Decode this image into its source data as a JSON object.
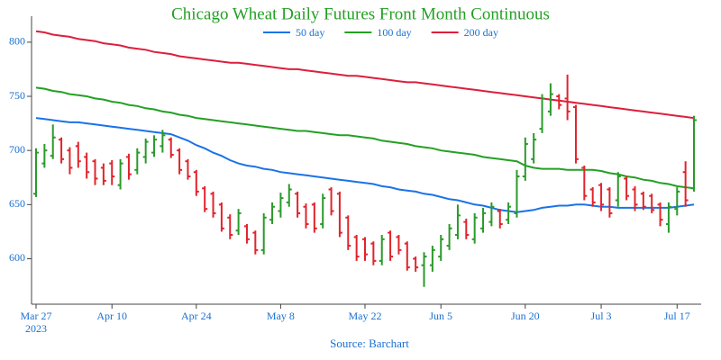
{
  "chart_data": {
    "type": "ohlc",
    "title": "Chicago Wheat Daily Futures Front Month Continuous",
    "source": "Source: Barchart",
    "x": [
      "2023-03-27",
      "2023-03-28",
      "2023-03-29",
      "2023-03-30",
      "2023-03-31",
      "2023-04-03",
      "2023-04-04",
      "2023-04-05",
      "2023-04-06",
      "2023-04-10",
      "2023-04-11",
      "2023-04-12",
      "2023-04-13",
      "2023-04-14",
      "2023-04-17",
      "2023-04-18",
      "2023-04-19",
      "2023-04-20",
      "2023-04-21",
      "2023-04-24",
      "2023-04-25",
      "2023-04-26",
      "2023-04-27",
      "2023-04-28",
      "2023-05-01",
      "2023-05-02",
      "2023-05-03",
      "2023-05-04",
      "2023-05-05",
      "2023-05-08",
      "2023-05-09",
      "2023-05-10",
      "2023-05-11",
      "2023-05-12",
      "2023-05-15",
      "2023-05-16",
      "2023-05-17",
      "2023-05-18",
      "2023-05-19",
      "2023-05-22",
      "2023-05-23",
      "2023-05-24",
      "2023-05-25",
      "2023-05-26",
      "2023-05-30",
      "2023-05-31",
      "2023-06-01",
      "2023-06-02",
      "2023-06-05",
      "2023-06-06",
      "2023-06-07",
      "2023-06-08",
      "2023-06-09",
      "2023-06-12",
      "2023-06-13",
      "2023-06-14",
      "2023-06-15",
      "2023-06-16",
      "2023-06-20",
      "2023-06-21",
      "2023-06-22",
      "2023-06-23",
      "2023-06-26",
      "2023-06-27",
      "2023-06-28",
      "2023-06-29",
      "2023-06-30",
      "2023-07-03",
      "2023-07-05",
      "2023-07-06",
      "2023-07-07",
      "2023-07-10",
      "2023-07-11",
      "2023-07-12",
      "2023-07-13",
      "2023-07-14",
      "2023-07-17",
      "2023-07-18",
      "2023-07-19"
    ],
    "ohlc": {
      "increasing_color": "#2a9a2a",
      "decreasing_color": "#e0242c",
      "open": [
        660,
        688,
        695,
        710,
        700,
        704,
        694,
        690,
        684,
        688,
        668,
        694,
        682,
        694,
        698,
        704,
        710,
        700,
        690,
        680,
        665,
        660,
        650,
        638,
        626,
        630,
        624,
        608,
        636,
        644,
        652,
        660,
        648,
        650,
        632,
        664,
        660,
        638,
        620,
        618,
        614,
        598,
        624,
        620,
        614,
        600,
        594,
        594,
        602,
        612,
        622,
        634,
        618,
        628,
        634,
        644,
        636,
        642,
        676,
        692,
        720,
        736,
        750,
        748,
        740,
        684,
        664,
        668,
        664,
        654,
        674,
        664,
        660,
        658,
        650,
        632,
        646,
        680,
        665
      ],
      "high": [
        702,
        706,
        724,
        712,
        703,
        708,
        698,
        692,
        688,
        691,
        692,
        697,
        702,
        711,
        714,
        719,
        712,
        702,
        692,
        682,
        667,
        662,
        652,
        641,
        646,
        632,
        626,
        642,
        652,
        661,
        669,
        662,
        651,
        652,
        660,
        666,
        662,
        640,
        622,
        620,
        616,
        622,
        626,
        622,
        616,
        602,
        606,
        612,
        622,
        632,
        650,
        637,
        642,
        647,
        652,
        646,
        652,
        682,
        712,
        716,
        752,
        762,
        752,
        770,
        742,
        686,
        666,
        670,
        666,
        680,
        676,
        667,
        662,
        660,
        652,
        652,
        666,
        690,
        732
      ],
      "low": [
        657,
        684,
        692,
        688,
        678,
        684,
        674,
        668,
        668,
        668,
        664,
        673,
        678,
        688,
        694,
        698,
        693,
        678,
        673,
        658,
        643,
        638,
        625,
        618,
        622,
        614,
        604,
        604,
        632,
        638,
        648,
        638,
        628,
        624,
        628,
        640,
        620,
        608,
        598,
        598,
        594,
        594,
        598,
        604,
        589,
        588,
        574,
        588,
        598,
        608,
        618,
        618,
        614,
        624,
        630,
        628,
        632,
        638,
        672,
        688,
        716,
        732,
        738,
        728,
        688,
        654,
        648,
        644,
        638,
        648,
        654,
        644,
        645,
        642,
        630,
        624,
        640,
        648,
        662
      ],
      "close": [
        698,
        700,
        712,
        692,
        684,
        690,
        680,
        674,
        672,
        676,
        688,
        678,
        698,
        708,
        710,
        714,
        696,
        682,
        676,
        662,
        646,
        642,
        628,
        622,
        642,
        618,
        608,
        638,
        648,
        656,
        664,
        642,
        632,
        628,
        656,
        644,
        624,
        612,
        602,
        604,
        598,
        618,
        602,
        608,
        592,
        592,
        602,
        608,
        618,
        628,
        640,
        622,
        638,
        642,
        648,
        632,
        648,
        676,
        706,
        710,
        748,
        752,
        742,
        736,
        692,
        658,
        652,
        650,
        642,
        676,
        658,
        650,
        648,
        645,
        636,
        648,
        662,
        654,
        728
      ]
    },
    "series": [
      {
        "name": "50 day",
        "color": "#1a73e8",
        "values": [
          730,
          729,
          728,
          727,
          726,
          726,
          725,
          724,
          723,
          722,
          721,
          720,
          719,
          718,
          717,
          716,
          715,
          712,
          709,
          705,
          702,
          698,
          695,
          691,
          688,
          686,
          685,
          683,
          682,
          680,
          679,
          678,
          677,
          676,
          675,
          674,
          673,
          672,
          671,
          670,
          669,
          667,
          666,
          664,
          663,
          662,
          660,
          659,
          657,
          655,
          654,
          652,
          650,
          649,
          647,
          645,
          644,
          643,
          644,
          645,
          647,
          648,
          649,
          649,
          650,
          650,
          649,
          648,
          648,
          647,
          647,
          647,
          647,
          647,
          647,
          647,
          648,
          649,
          650
        ]
      },
      {
        "name": "100 day",
        "color": "#24a024",
        "values": [
          758,
          757,
          755,
          754,
          752,
          751,
          750,
          748,
          747,
          745,
          744,
          742,
          741,
          739,
          738,
          736,
          735,
          733,
          732,
          730,
          729,
          728,
          727,
          726,
          725,
          724,
          723,
          722,
          721,
          720,
          719,
          718,
          718,
          717,
          716,
          715,
          714,
          714,
          713,
          712,
          711,
          709,
          708,
          707,
          706,
          704,
          703,
          702,
          700,
          699,
          698,
          697,
          696,
          694,
          693,
          692,
          691,
          690,
          686,
          684,
          683,
          683,
          683,
          682,
          682,
          682,
          682,
          681,
          679,
          678,
          676,
          675,
          673,
          672,
          670,
          669,
          667,
          666,
          665
        ]
      },
      {
        "name": "200 day",
        "color": "#dc1f3c",
        "values": [
          810,
          809,
          807,
          806,
          805,
          803,
          802,
          801,
          799,
          798,
          797,
          795,
          794,
          793,
          791,
          790,
          789,
          787,
          786,
          785,
          784,
          783,
          782,
          781,
          781,
          780,
          779,
          778,
          777,
          776,
          775,
          775,
          774,
          773,
          772,
          771,
          770,
          769,
          769,
          768,
          767,
          766,
          765,
          764,
          763,
          763,
          762,
          761,
          760,
          759,
          758,
          757,
          756,
          755,
          754,
          753,
          752,
          751,
          750,
          749,
          748,
          747,
          746,
          745,
          744,
          743,
          742,
          741,
          740,
          739,
          738,
          737,
          736,
          735,
          734,
          733,
          732,
          731,
          730
        ]
      }
    ],
    "ylim": [
      558,
      824
    ],
    "yticks": [
      600,
      650,
      700,
      750,
      800
    ],
    "xticks": [
      {
        "value": "2023-03-27",
        "label": "Mar 27\n2023"
      },
      {
        "value": "2023-04-10",
        "label": "Apr 10"
      },
      {
        "value": "2023-04-24",
        "label": "Apr 24"
      },
      {
        "value": "2023-05-08",
        "label": "May 8"
      },
      {
        "value": "2023-05-22",
        "label": "May 22"
      },
      {
        "value": "2023-06-05",
        "label": "Jun 5"
      },
      {
        "value": "2023-06-20",
        "label": "Jun 20"
      },
      {
        "value": "2023-07-03",
        "label": "Jul 3"
      },
      {
        "value": "2023-07-17",
        "label": "Jul 17"
      }
    ],
    "legend": "top",
    "title_color": "#24a024",
    "label_color": "#1a6fd0",
    "grid": false
  }
}
